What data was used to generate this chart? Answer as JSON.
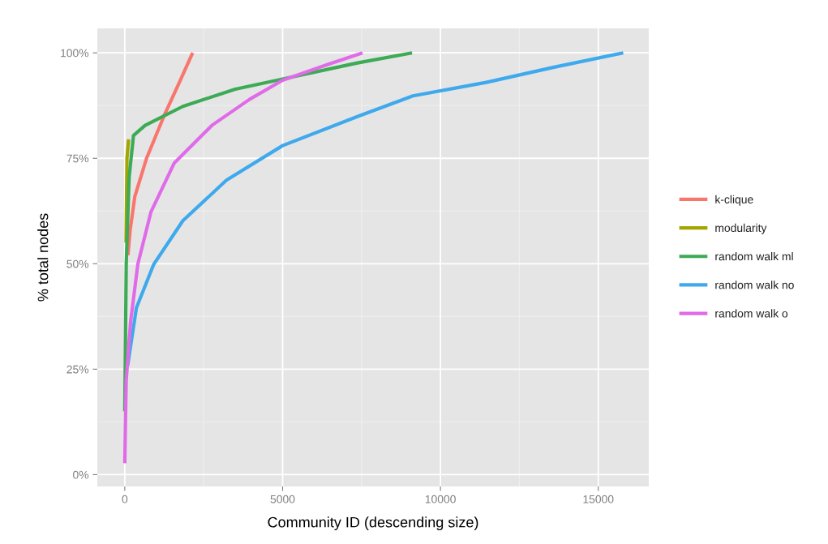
{
  "chart_data": {
    "type": "line",
    "xlabel": "Community ID (descending size)",
    "ylabel": "% total nodes",
    "xlim": [
      -870,
      16600
    ],
    "xticks": [
      0,
      5000,
      10000,
      15000
    ],
    "ylim": [
      -2.8,
      105.8
    ],
    "yticks": [
      {
        "value": 0,
        "label": "0%"
      },
      {
        "value": 25,
        "label": "25%"
      },
      {
        "value": 50,
        "label": "50%"
      },
      {
        "value": 75,
        "label": "75%"
      },
      {
        "value": 100,
        "label": "100%"
      }
    ],
    "grid": true,
    "legend": "right",
    "line_style": "solid",
    "marker": "none",
    "series": [
      {
        "name": "k-clique",
        "color": "#F8766D",
        "x": [
          100,
          170,
          320,
          690,
          1240,
          1700,
          2150
        ],
        "values": [
          52,
          58,
          66,
          75,
          85,
          92.5,
          100
        ]
      },
      {
        "name": "modularity",
        "color": "#A3A500",
        "x": [
          40,
          70,
          120
        ],
        "values": [
          55,
          75,
          79.5
        ]
      },
      {
        "name": "random walk ml",
        "color": "#3DAA55",
        "x": [
          0,
          46,
          138,
          276,
          645,
          1840,
          3500,
          5000,
          7370,
          9100
        ],
        "values": [
          15,
          50,
          70.5,
          80.4,
          82.8,
          87.3,
          91.4,
          93.8,
          97.6,
          100
        ]
      },
      {
        "name": "random walk no",
        "color": "#3EA9EC",
        "x": [
          92,
          370,
          920,
          1840,
          3220,
          5000,
          7370,
          9130,
          11450,
          13600,
          15790
        ],
        "values": [
          25.9,
          39.6,
          49.9,
          60.2,
          69.8,
          78,
          84.9,
          89.8,
          93,
          96.6,
          100
        ]
      },
      {
        "name": "random walk o",
        "color": "#E06BE8",
        "x": [
          0,
          46,
          184,
          414,
          830,
          1570,
          2760,
          3960,
          5000,
          6450,
          7530
        ],
        "values": [
          2.7,
          22.4,
          36.2,
          49.9,
          62.3,
          73.9,
          82.8,
          89,
          93.5,
          97.3,
          100
        ]
      }
    ]
  }
}
